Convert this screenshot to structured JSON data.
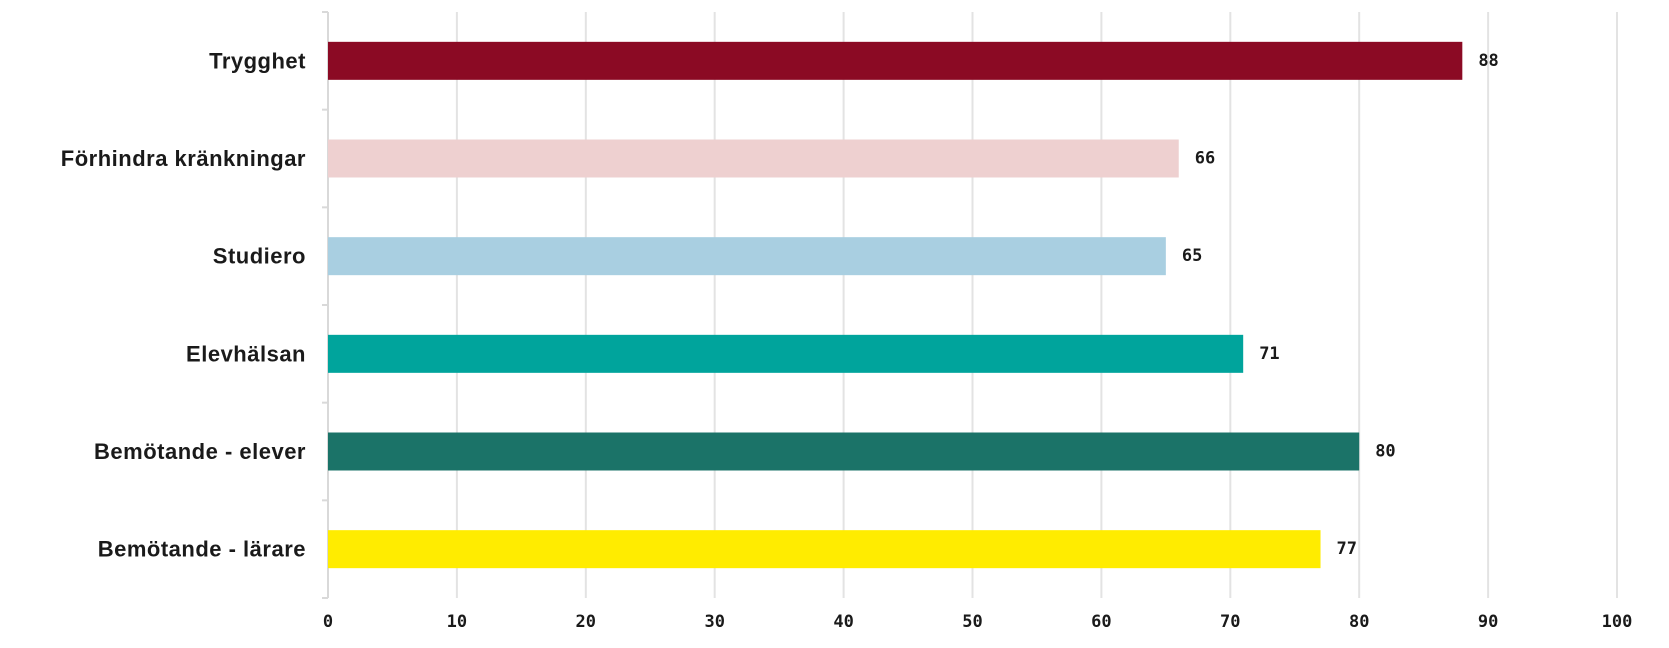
{
  "chart_data": {
    "type": "bar",
    "orientation": "horizontal",
    "categories": [
      "Trygghet",
      "Förhindra kränkningar",
      "Studiero",
      "Elevhälsan",
      "Bemötande - elever",
      "Bemötande - lärare"
    ],
    "values": [
      88,
      66,
      65,
      71,
      80,
      77
    ],
    "colors": [
      "#8b0a24",
      "#eed0d0",
      "#a9cfe1",
      "#00a49c",
      "#1b7368",
      "#ffec00"
    ],
    "xlim": [
      0,
      100
    ],
    "xticks": [
      0,
      10,
      20,
      30,
      40,
      50,
      60,
      70,
      80,
      90,
      100
    ],
    "grid": true,
    "data_labels": true,
    "title": "",
    "xlabel": "",
    "ylabel": ""
  }
}
